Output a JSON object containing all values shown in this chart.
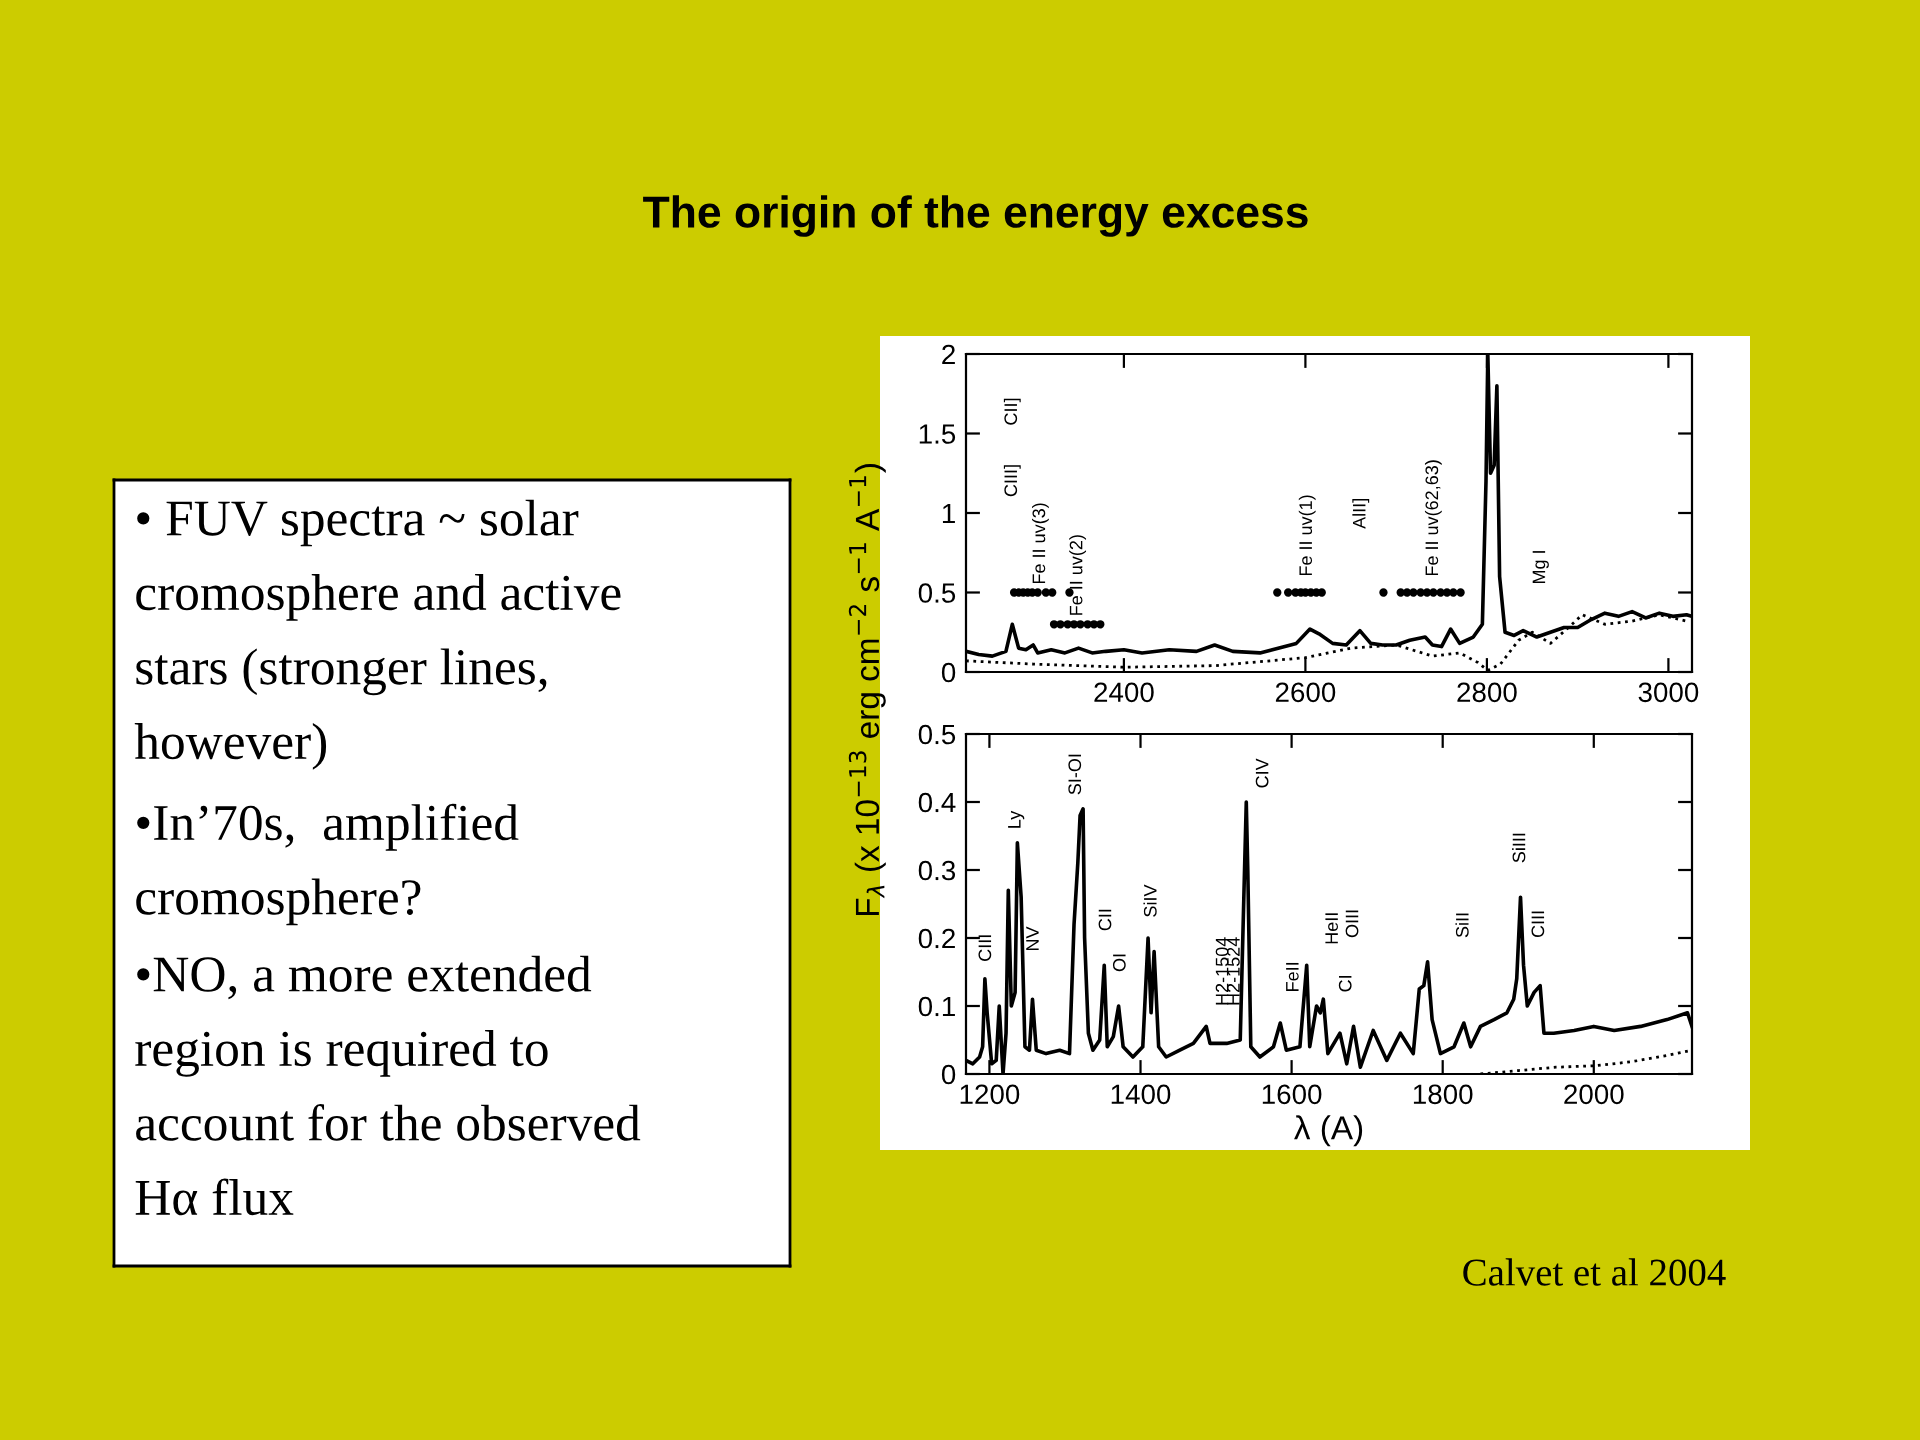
{
  "chart_data": [
    {
      "type": "other",
      "title": "The origin of the energy excess",
      "annotations": [
        "• FUV spectra ~ solar\ncromosphere and active\nstars (stronger lines,\nhowever)",
        "•In’70s,  amplified\ncromosphere?",
        "•NO, a more extended\nregion is required to\naccount for the observed\nHα flux"
      ]
    },
    {
      "type": "line",
      "xlim": [
        2226,
        3026
      ],
      "xticks": [
        2400,
        2600,
        2800,
        3000
      ],
      "ylim": [
        0,
        2
      ],
      "yticks": [
        0,
        0.5,
        1,
        1.5,
        2
      ],
      "series": [
        {
          "type": "line",
          "color": "#000000",
          "line_style": "solid",
          "x": [
            2226,
            2240,
            2255,
            2270,
            2277,
            2284,
            2292,
            2300,
            2305,
            2320,
            2335,
            2350,
            2365,
            2380,
            2400,
            2420,
            2450,
            2480,
            2500,
            2520,
            2550,
            2570,
            2590,
            2605,
            2615,
            2630,
            2645,
            2660,
            2672,
            2685,
            2700,
            2715,
            2732,
            2740,
            2750,
            2760,
            2770,
            2785,
            2795,
            2799,
            2801,
            2804,
            2808,
            2811,
            2814,
            2820,
            2830,
            2840,
            2855,
            2870,
            2885,
            2900,
            2915,
            2930,
            2945,
            2960,
            2975,
            2990,
            3005,
            3020,
            3026
          ],
          "values": [
            0.13,
            0.11,
            0.1,
            0.13,
            0.3,
            0.15,
            0.14,
            0.17,
            0.12,
            0.14,
            0.12,
            0.15,
            0.12,
            0.13,
            0.14,
            0.12,
            0.14,
            0.13,
            0.17,
            0.13,
            0.12,
            0.15,
            0.18,
            0.27,
            0.24,
            0.18,
            0.17,
            0.26,
            0.18,
            0.17,
            0.17,
            0.2,
            0.22,
            0.17,
            0.16,
            0.27,
            0.18,
            0.22,
            0.3,
            1.2,
            2.0,
            1.25,
            1.3,
            1.8,
            0.6,
            0.25,
            0.23,
            0.26,
            0.22,
            0.25,
            0.28,
            0.28,
            0.33,
            0.37,
            0.35,
            0.38,
            0.34,
            0.37,
            0.35,
            0.36,
            0.35
          ]
        },
        {
          "type": "line",
          "color": "#000000",
          "line_style": "dotted",
          "x": [
            2226,
            2300,
            2400,
            2500,
            2600,
            2650,
            2700,
            2740,
            2770,
            2790,
            2801,
            2815,
            2835,
            2850,
            2870,
            2890,
            2905,
            2930,
            2960,
            2990,
            3020
          ],
          "values": [
            0.07,
            0.05,
            0.03,
            0.04,
            0.09,
            0.15,
            0.17,
            0.1,
            0.12,
            0.06,
            0.01,
            0.05,
            0.2,
            0.25,
            0.18,
            0.28,
            0.36,
            0.3,
            0.32,
            0.36,
            0.32
          ]
        },
        {
          "type": "scatter",
          "color": "#000000",
          "marker": "circle",
          "x": [
            2279,
            2284,
            2289,
            2294,
            2299,
            2305,
            2314,
            2321,
            2340,
            2569,
            2581,
            2589,
            2595,
            2600,
            2606,
            2612,
            2618,
            2686,
            2705,
            2712,
            2719,
            2727,
            2734,
            2741,
            2749,
            2756,
            2763,
            2771
          ],
          "values": [
            0.5,
            0.5,
            0.5,
            0.5,
            0.5,
            0.5,
            0.5,
            0.5,
            0.5,
            0.5,
            0.5,
            0.5,
            0.5,
            0.5,
            0.5,
            0.5,
            0.5,
            0.5,
            0.5,
            0.5,
            0.5,
            0.5,
            0.5,
            0.5,
            0.5,
            0.5,
            0.5,
            0.5
          ]
        },
        {
          "type": "scatter",
          "color": "#000000",
          "marker": "circle",
          "x": [
            2323,
            2330,
            2338,
            2345,
            2352,
            2360,
            2367,
            2374
          ],
          "values": [
            0.3,
            0.3,
            0.3,
            0.3,
            0.3,
            0.3,
            0.3,
            0.3
          ]
        }
      ],
      "annotations": [
        "CII]",
        "CIII]",
        "Fe II uv(3)",
        "Fe II uv(2)",
        "Fe II uv(1)",
        "AlII]",
        "Fe II uv(62,63)",
        "Mg I"
      ]
    },
    {
      "type": "line",
      "xlim": [
        1169,
        2130
      ],
      "xticks": [
        1200,
        1400,
        1600,
        1800,
        2000
      ],
      "ylim": [
        0,
        0.5
      ],
      "yticks": [
        0,
        0.1,
        0.2,
        0.3,
        0.4,
        0.5
      ],
      "xlabel": "λ (A)",
      "ylabel": "F$_{λ}$ (x 10$^{−13}$ erg cm$^{−2}$ s$^{−1}$ A$^{−1}$)",
      "series": [
        {
          "type": "line",
          "color": "#000000",
          "line_style": "solid",
          "x": [
            1169,
            1178,
            1187,
            1191,
            1194,
            1197,
            1203,
            1209,
            1213,
            1218,
            1222,
            1225,
            1229,
            1234,
            1237,
            1242,
            1247,
            1253,
            1257,
            1262,
            1275,
            1293,
            1306,
            1312,
            1317,
            1320,
            1324,
            1326,
            1331,
            1337,
            1346,
            1352,
            1356,
            1364,
            1371,
            1377,
            1390,
            1403,
            1410,
            1414,
            1418,
            1424,
            1434,
            1452,
            1470,
            1487,
            1492,
            1514,
            1532,
            1537,
            1540,
            1542,
            1546,
            1558,
            1576,
            1585,
            1593,
            1611,
            1620,
            1624,
            1633,
            1638,
            1642,
            1648,
            1664,
            1673,
            1682,
            1691,
            1708,
            1726,
            1744,
            1761,
            1769,
            1775,
            1780,
            1786,
            1797,
            1815,
            1828,
            1837,
            1850,
            1868,
            1885,
            1894,
            1898,
            1903,
            1907,
            1912,
            1921,
            1929,
            1934,
            1947,
            1974,
            2000,
            2027,
            2062,
            2097,
            2124,
            2130
          ],
          "values": [
            0.02,
            0.015,
            0.025,
            0.04,
            0.14,
            0.09,
            0.015,
            0.02,
            0.1,
            0.0,
            0.06,
            0.27,
            0.1,
            0.12,
            0.34,
            0.26,
            0.04,
            0.035,
            0.11,
            0.035,
            0.03,
            0.035,
            0.03,
            0.22,
            0.31,
            0.38,
            0.39,
            0.2,
            0.06,
            0.035,
            0.05,
            0.16,
            0.04,
            0.055,
            0.1,
            0.04,
            0.025,
            0.04,
            0.2,
            0.09,
            0.18,
            0.04,
            0.025,
            0.035,
            0.045,
            0.07,
            0.045,
            0.045,
            0.05,
            0.27,
            0.4,
            0.3,
            0.04,
            0.025,
            0.04,
            0.075,
            0.035,
            0.04,
            0.16,
            0.04,
            0.1,
            0.09,
            0.11,
            0.03,
            0.06,
            0.015,
            0.07,
            0.01,
            0.064,
            0.02,
            0.06,
            0.03,
            0.125,
            0.13,
            0.165,
            0.08,
            0.03,
            0.04,
            0.075,
            0.04,
            0.07,
            0.08,
            0.09,
            0.11,
            0.14,
            0.26,
            0.16,
            0.1,
            0.12,
            0.13,
            0.06,
            0.06,
            0.064,
            0.07,
            0.064,
            0.07,
            0.08,
            0.09,
            0.07
          ]
        },
        {
          "type": "line",
          "color": "#000000",
          "line_style": "dotted",
          "x": [
            1850,
            1900,
            1950,
            2000,
            2050,
            2100,
            2130
          ],
          "values": [
            0.0,
            0.005,
            0.01,
            0.012,
            0.018,
            0.028,
            0.035
          ]
        }
      ],
      "annotations": [
        "CIII",
        "Ly",
        "NV",
        "SI-OI",
        "CII",
        "OI",
        "SiIV",
        "H2-1504",
        "H2-1524",
        "CIV",
        "FeII",
        "HeII",
        "CI",
        "OIII",
        "SiII",
        "SiIII",
        "CIII",
        "Calvet et al 2004"
      ]
    }
  ]
}
